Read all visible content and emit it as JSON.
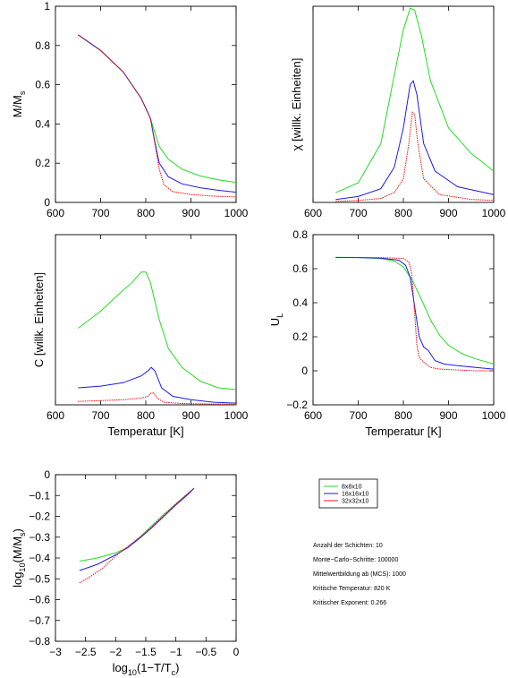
{
  "series_names": [
    "8x8x10",
    "16x16x10",
    "32x32x10"
  ],
  "colors": {
    "8x8x10": "#22dd22",
    "16x16x10": "#1a1aee",
    "32x32x10": "#ee1111",
    "axis": "#000000"
  },
  "chart_data": [
    {
      "id": "magnetization",
      "type": "line",
      "ylabel": "M/M",
      "ylabel_sub": "s",
      "xlim": [
        600,
        1000
      ],
      "ylim": [
        0,
        1
      ],
      "xticks": [
        "600",
        "700",
        "800",
        "900",
        "1000"
      ],
      "yticks": [
        "0",
        "0.2",
        "0.4",
        "0.6",
        "0.8",
        "1"
      ],
      "series": [
        {
          "name": "8x8x10",
          "x": [
            650,
            700,
            750,
            790,
            810,
            830,
            850,
            880,
            920,
            960,
            1000
          ],
          "y": [
            0.855,
            0.775,
            0.665,
            0.53,
            0.43,
            0.285,
            0.22,
            0.17,
            0.135,
            0.115,
            0.102
          ]
        },
        {
          "name": "16x16x10",
          "x": [
            650,
            700,
            750,
            790,
            810,
            820,
            830,
            850,
            880,
            920,
            960,
            1000
          ],
          "y": [
            0.855,
            0.775,
            0.665,
            0.53,
            0.43,
            0.31,
            0.2,
            0.13,
            0.095,
            0.075,
            0.062,
            0.052
          ]
        },
        {
          "name": "32x32x10",
          "x": [
            650,
            700,
            750,
            790,
            810,
            820,
            830,
            840,
            860,
            900,
            950,
            1000
          ],
          "y": [
            0.855,
            0.775,
            0.665,
            0.53,
            0.43,
            0.3,
            0.17,
            0.09,
            0.055,
            0.04,
            0.032,
            0.028
          ]
        }
      ]
    },
    {
      "id": "susceptibility",
      "type": "line",
      "ylabel": "χ [willk. Einheiten]",
      "xlim": [
        600,
        1000
      ],
      "ylim": [
        0,
        1
      ],
      "xticks": [
        "600",
        "700",
        "800",
        "900",
        "1000"
      ],
      "yticks": [],
      "series": [
        {
          "name": "8x8x10",
          "x": [
            650,
            700,
            750,
            780,
            800,
            815,
            825,
            840,
            860,
            900,
            950,
            1000
          ],
          "y": [
            0.05,
            0.1,
            0.3,
            0.65,
            0.88,
            0.99,
            0.98,
            0.85,
            0.62,
            0.38,
            0.25,
            0.16
          ]
        },
        {
          "name": "16x16x10",
          "x": [
            650,
            700,
            750,
            780,
            800,
            815,
            822,
            830,
            845,
            870,
            920,
            1000
          ],
          "y": [
            0.015,
            0.03,
            0.07,
            0.18,
            0.38,
            0.6,
            0.62,
            0.55,
            0.3,
            0.16,
            0.08,
            0.04
          ]
        },
        {
          "name": "32x32x10",
          "x": [
            650,
            700,
            750,
            780,
            800,
            812,
            820,
            825,
            832,
            845,
            880,
            950,
            1000
          ],
          "y": [
            0.005,
            0.01,
            0.02,
            0.05,
            0.12,
            0.3,
            0.46,
            0.45,
            0.3,
            0.12,
            0.04,
            0.015,
            0.01
          ]
        }
      ]
    },
    {
      "id": "heat-capacity",
      "type": "line",
      "ylabel": "C [willk. Einheiten]",
      "xlabel": "Temperatur [K]",
      "xlim": [
        600,
        1000
      ],
      "ylim": [
        0,
        1
      ],
      "xticks": [
        "600",
        "700",
        "800",
        "900",
        "1000"
      ],
      "yticks": [],
      "series": [
        {
          "name": "8x8x10",
          "x": [
            650,
            700,
            740,
            770,
            790,
            800,
            810,
            830,
            850,
            880,
            920,
            960,
            1000
          ],
          "y": [
            0.45,
            0.55,
            0.65,
            0.72,
            0.78,
            0.78,
            0.72,
            0.5,
            0.33,
            0.22,
            0.14,
            0.1,
            0.09
          ]
        },
        {
          "name": "16x16x10",
          "x": [
            650,
            700,
            750,
            790,
            805,
            812,
            820,
            835,
            860,
            900,
            950,
            1000
          ],
          "y": [
            0.1,
            0.11,
            0.13,
            0.17,
            0.2,
            0.22,
            0.2,
            0.1,
            0.05,
            0.03,
            0.015,
            0.01
          ]
        },
        {
          "name": "32x32x10",
          "x": [
            650,
            700,
            750,
            790,
            805,
            812,
            818,
            825,
            840,
            880,
            950,
            1000
          ],
          "y": [
            0.02,
            0.025,
            0.03,
            0.04,
            0.05,
            0.07,
            0.07,
            0.04,
            0.015,
            0.008,
            0.005,
            0.003
          ]
        }
      ]
    },
    {
      "id": "binder-cumulant",
      "type": "line",
      "ylabel": "U",
      "ylabel_sub": "L",
      "xlabel": "Temperatur [K]",
      "xlim": [
        600,
        1000
      ],
      "ylim": [
        -0.2,
        0.8
      ],
      "xticks": [
        "600",
        "700",
        "800",
        "900",
        "1000"
      ],
      "yticks": [
        "−0.2",
        "0",
        "0.2",
        "0.4",
        "0.6",
        "0.8"
      ],
      "series": [
        {
          "name": "8x8x10",
          "x": [
            650,
            700,
            750,
            780,
            800,
            820,
            840,
            860,
            880,
            900,
            930,
            960,
            1000
          ],
          "y": [
            0.667,
            0.666,
            0.66,
            0.645,
            0.61,
            0.53,
            0.42,
            0.3,
            0.21,
            0.15,
            0.1,
            0.07,
            0.04
          ]
        },
        {
          "name": "16x16x10",
          "x": [
            650,
            700,
            750,
            790,
            805,
            815,
            825,
            835,
            845,
            855,
            870,
            890,
            920,
            960,
            1000
          ],
          "y": [
            0.666,
            0.665,
            0.662,
            0.65,
            0.62,
            0.55,
            0.38,
            0.2,
            0.14,
            0.12,
            0.06,
            0.04,
            0.03,
            0.02,
            0.01
          ]
        },
        {
          "name": "32x32x10",
          "x": [
            650,
            700,
            750,
            800,
            812,
            818,
            822,
            826,
            830,
            835,
            845,
            860,
            880,
            920,
            960,
            1000
          ],
          "y": [
            0.666,
            0.666,
            0.665,
            0.66,
            0.64,
            0.58,
            0.45,
            0.3,
            0.15,
            0.08,
            0.05,
            0.02,
            0.01,
            0.005,
            0.0,
            0.0
          ]
        }
      ]
    },
    {
      "id": "log-magnetization",
      "type": "line",
      "ylabel": "log",
      "ylabel_sub": "10",
      "ylabel_rest": "(M/M",
      "ylabel_sub2": "s",
      "ylabel_end": ")",
      "xlabel": "log",
      "xlabel_sub": "10",
      "xlabel_rest": "(1−T/T",
      "xlabel_sub2": "c",
      "xlabel_end": ")",
      "xlim": [
        -3,
        0
      ],
      "ylim": [
        -0.8,
        0
      ],
      "xticks": [
        "−3",
        "−2.5",
        "−2",
        "−1.5",
        "−1",
        "−0.5",
        "0"
      ],
      "yticks": [
        "−0.8",
        "−0.7",
        "−0.6",
        "−0.5",
        "−0.4",
        "−0.3",
        "−0.2",
        "−0.1",
        "0"
      ],
      "series": [
        {
          "name": "8x8x10",
          "x": [
            -2.6,
            -2.3,
            -2.0,
            -1.8,
            -1.6,
            -1.4,
            -1.2,
            -1.0,
            -0.8,
            -0.7
          ],
          "y": [
            -0.415,
            -0.4,
            -0.375,
            -0.35,
            -0.3,
            -0.245,
            -0.19,
            -0.14,
            -0.09,
            -0.065
          ]
        },
        {
          "name": "16x16x10",
          "x": [
            -2.6,
            -2.3,
            -2.0,
            -1.8,
            -1.6,
            -1.4,
            -1.2,
            -1.0,
            -0.8,
            -0.7
          ],
          "y": [
            -0.46,
            -0.43,
            -0.385,
            -0.35,
            -0.305,
            -0.255,
            -0.2,
            -0.145,
            -0.095,
            -0.065
          ]
        },
        {
          "name": "32x32x10",
          "x": [
            -2.6,
            -2.4,
            -2.2,
            -2.0,
            -1.8,
            -1.6,
            -1.4,
            -1.2,
            -1.0,
            -0.8,
            -0.7
          ],
          "y": [
            -0.52,
            -0.485,
            -0.445,
            -0.39,
            -0.345,
            -0.3,
            -0.25,
            -0.195,
            -0.14,
            -0.09,
            -0.065
          ]
        }
      ]
    }
  ],
  "info": {
    "lines": [
      "Anzahl der Schichten: 10",
      "Monte−Carlo−Schritte: 100000",
      "Mittelwertbildung ab (MCS): 1000",
      "Kritische Temperatur: 820 K",
      "Kritischer Exponent: 0.266"
    ]
  }
}
